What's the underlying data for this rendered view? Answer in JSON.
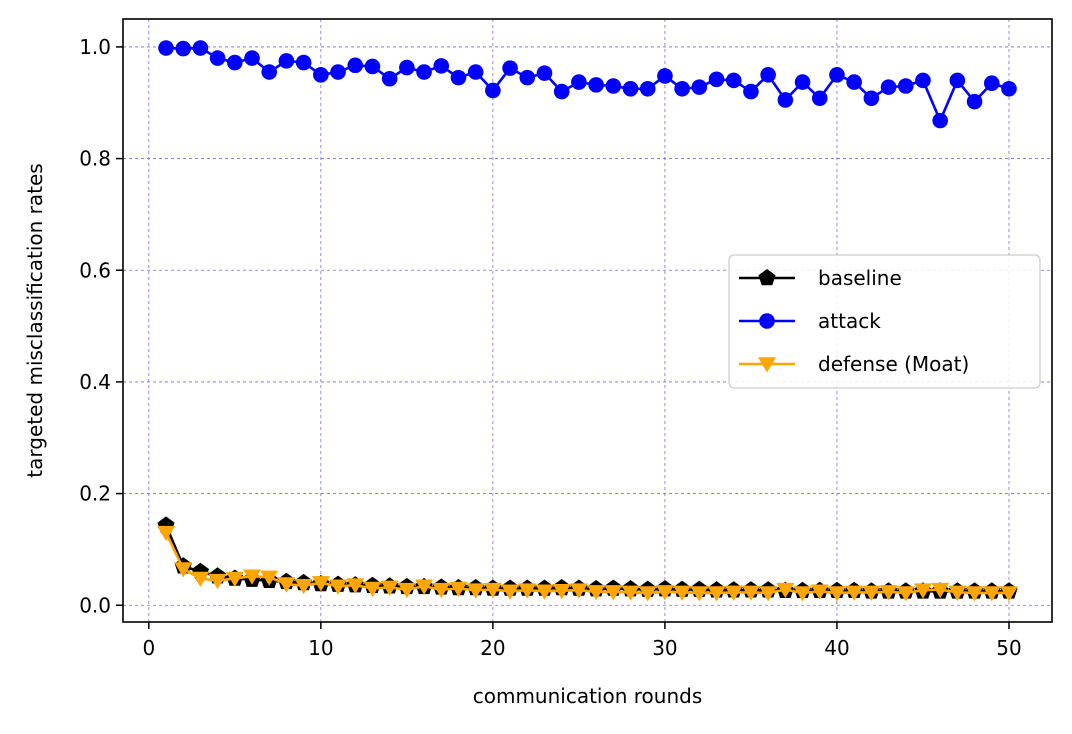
{
  "chart_data": {
    "type": "line",
    "title": "",
    "xlabel": "communication rounds",
    "ylabel": "targeted misclassification rates",
    "xlim": [
      -1.5,
      52.5
    ],
    "ylim": [
      -0.03,
      1.05
    ],
    "xticks": [
      0,
      10,
      20,
      30,
      40,
      50
    ],
    "xtick_labels": [
      "0",
      "10",
      "20",
      "30",
      "40",
      "50"
    ],
    "yticks": [
      0.0,
      0.2,
      0.4,
      0.6,
      0.8,
      1.0
    ],
    "ytick_labels": [
      "0.0",
      "0.2",
      "0.4",
      "0.6",
      "0.8",
      "1.0"
    ],
    "grid": true,
    "grid_color": "#4b4bff",
    "legend_position": "center-right",
    "x": [
      1,
      2,
      3,
      4,
      5,
      6,
      7,
      8,
      9,
      10,
      11,
      12,
      13,
      14,
      15,
      16,
      17,
      18,
      19,
      20,
      21,
      22,
      23,
      24,
      25,
      26,
      27,
      28,
      29,
      30,
      31,
      32,
      33,
      34,
      35,
      36,
      37,
      38,
      39,
      40,
      41,
      42,
      43,
      44,
      45,
      46,
      47,
      48,
      49,
      50
    ],
    "series": [
      {
        "name": "baseline",
        "color": "#000000",
        "marker": "pentagon",
        "values": [
          0.143,
          0.07,
          0.06,
          0.052,
          0.048,
          0.046,
          0.044,
          0.042,
          0.04,
          0.038,
          0.037,
          0.036,
          0.035,
          0.034,
          0.033,
          0.033,
          0.032,
          0.031,
          0.031,
          0.03,
          0.03,
          0.03,
          0.03,
          0.031,
          0.03,
          0.029,
          0.03,
          0.029,
          0.028,
          0.029,
          0.028,
          0.028,
          0.027,
          0.027,
          0.027,
          0.027,
          0.026,
          0.026,
          0.026,
          0.026,
          0.026,
          0.025,
          0.025,
          0.025,
          0.025,
          0.025,
          0.025,
          0.025,
          0.025,
          0.025
        ]
      },
      {
        "name": "attack",
        "color": "#0000ff",
        "marker": "circle",
        "values": [
          0.998,
          0.997,
          0.998,
          0.98,
          0.972,
          0.98,
          0.955,
          0.975,
          0.972,
          0.95,
          0.955,
          0.967,
          0.965,
          0.943,
          0.963,
          0.955,
          0.966,
          0.945,
          0.955,
          0.922,
          0.962,
          0.945,
          0.953,
          0.92,
          0.937,
          0.932,
          0.93,
          0.925,
          0.925,
          0.948,
          0.925,
          0.928,
          0.942,
          0.94,
          0.92,
          0.95,
          0.905,
          0.937,
          0.908,
          0.95,
          0.937,
          0.908,
          0.928,
          0.93,
          0.94,
          0.868,
          0.94,
          0.902,
          0.935,
          0.925
        ]
      },
      {
        "name": "defense (Moat)",
        "color": "#ffa500",
        "marker": "triangle-down",
        "values": [
          0.13,
          0.065,
          0.048,
          0.044,
          0.048,
          0.052,
          0.05,
          0.038,
          0.035,
          0.04,
          0.034,
          0.036,
          0.03,
          0.032,
          0.028,
          0.034,
          0.028,
          0.03,
          0.027,
          0.028,
          0.025,
          0.027,
          0.025,
          0.026,
          0.027,
          0.024,
          0.024,
          0.023,
          0.022,
          0.024,
          0.023,
          0.022,
          0.022,
          0.023,
          0.023,
          0.022,
          0.028,
          0.022,
          0.025,
          0.022,
          0.023,
          0.023,
          0.024,
          0.022,
          0.027,
          0.028,
          0.023,
          0.022,
          0.022,
          0.022
        ]
      }
    ]
  }
}
